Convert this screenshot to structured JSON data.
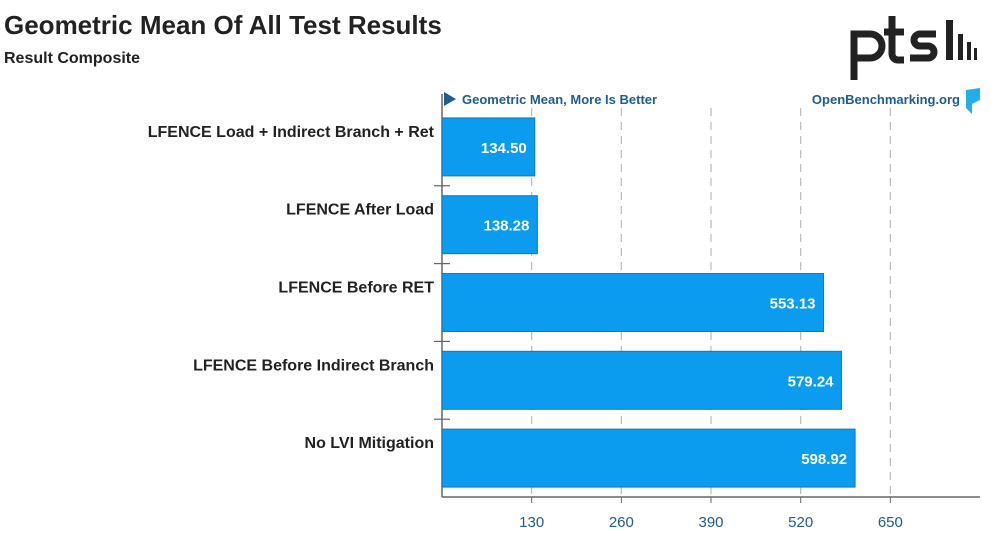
{
  "header": {
    "title": "Geometric Mean Of All Test Results",
    "subtitle": "Result Composite",
    "logo_text": "ptsh"
  },
  "chart_data": {
    "type": "bar",
    "orientation": "horizontal",
    "metric_label": "Geometric Mean, More Is Better",
    "source_label": "OpenBenchmarking.org",
    "categories": [
      "LFENCE Load + Indirect Branch + Ret",
      "LFENCE After Load",
      "LFENCE Before RET",
      "LFENCE Before Indirect Branch",
      "No LVI Mitigation"
    ],
    "values": [
      134.5,
      138.28,
      553.13,
      579.24,
      598.92
    ],
    "value_labels": [
      "134.50",
      "138.28",
      "553.13",
      "579.24",
      "598.92"
    ],
    "x_ticks": [
      130,
      260,
      390,
      520,
      650
    ],
    "xlim": [
      0,
      780
    ],
    "grid": "vertical-dashed",
    "colors": {
      "bar": "#0b9bef",
      "bar_border": "#1f76b8",
      "tick_text": "#1e5c91",
      "header_text": "#1e5c91",
      "grid": "#bbbbbb",
      "axis": "#666666"
    }
  }
}
